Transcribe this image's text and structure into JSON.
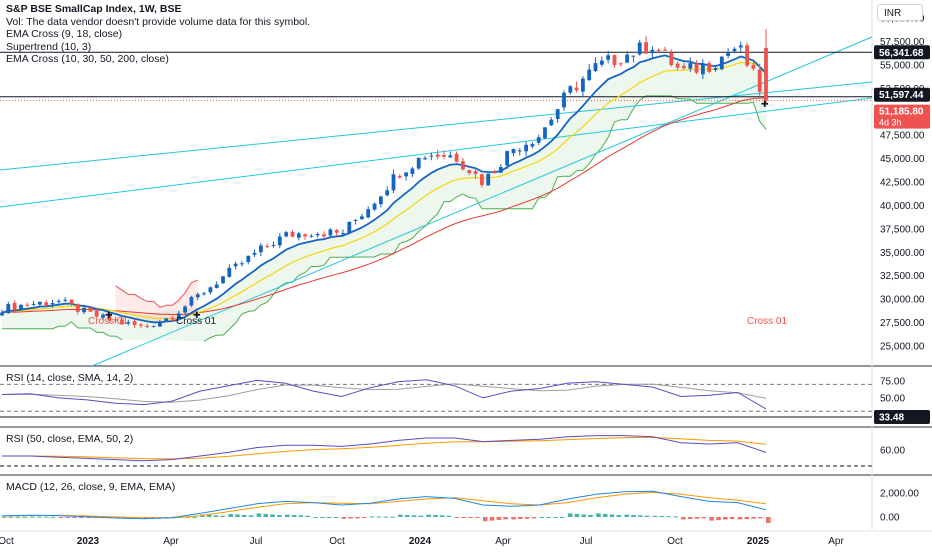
{
  "header": {
    "title": "S&P BSE SmallCap Index, 1W, BSE",
    "vol_note": "Vol: The data vendor doesn't provide volume data for this symbol.",
    "indicators": [
      "EMA Cross (9, 18, close)",
      "Supertrend (10, 3)",
      "EMA Cross (10, 30, 50, 200, close)"
    ],
    "currency": "INR"
  },
  "price_labels": {
    "resistance": "56,341.68",
    "support": "51,597.44",
    "current": "51,185.80",
    "countdown": "4d 3h"
  },
  "annotations": {
    "cross_left": "Cross 01",
    "cross_mid": "Cross 01",
    "cross_right": "Cross 01"
  },
  "colors": {
    "up": "#1565c0",
    "down": "#ef5350",
    "ema_fast": "#1565c0",
    "ema_slow": "#f5d70a",
    "ema_long": "#e53935",
    "supertrend_up": "#4caf50",
    "supertrend_down": "#ef5350",
    "trendline": "#26c6da",
    "rsi": "#5b4cc4",
    "rsi_ma": "#9e9e9e",
    "macd": "#1e88e5",
    "signal": "#ff9800",
    "hist_pos": "#26a69a",
    "hist_neg": "#ef5350"
  },
  "chart_data": [
    {
      "type": "candlestick",
      "title": "S&P BSE SmallCap Index, 1W, BSE",
      "x": [
        "Oct",
        "2023",
        "Apr",
        "Jul",
        "Oct",
        "2024",
        "Apr",
        "Jul",
        "Oct",
        "2025",
        "Apr"
      ],
      "y_ticks": [
        "60,000.00",
        "57,500.00",
        "55,000.00",
        "52,500.00",
        "50,000.00",
        "47,500.00",
        "45,000.00",
        "42,500.00",
        "40,000.00",
        "37,500.00",
        "35,000.00",
        "32,500.00",
        "30,000.00",
        "27,500.00",
        "25,000.00"
      ],
      "ylim": [
        24000,
        61000
      ],
      "series": [
        {
          "name": "S&P BSE SmallCap Index",
          "values": [
            {
              "t": "2022-10",
              "c": 29000
            },
            {
              "t": "2022-11",
              "c": 29500
            },
            {
              "t": "2022-12",
              "c": 29800
            },
            {
              "t": "2023-01",
              "c": 28500
            },
            {
              "t": "2023-02",
              "c": 27600
            },
            {
              "t": "2023-03",
              "c": 27000
            },
            {
              "t": "2023-04",
              "c": 28200
            },
            {
              "t": "2023-05",
              "c": 30500
            },
            {
              "t": "2023-06",
              "c": 32800
            },
            {
              "t": "2023-07",
              "c": 35000
            },
            {
              "t": "2023-08",
              "c": 36800
            },
            {
              "t": "2023-09",
              "c": 37200
            },
            {
              "t": "2023-10",
              "c": 37000
            },
            {
              "t": "2023-11",
              "c": 40000
            },
            {
              "t": "2023-12",
              "c": 43500
            },
            {
              "t": "2024-01",
              "c": 45500
            },
            {
              "t": "2024-02",
              "c": 45300
            },
            {
              "t": "2024-03",
              "c": 42500
            },
            {
              "t": "2024-04",
              "c": 46000
            },
            {
              "t": "2024-05",
              "c": 47500
            },
            {
              "t": "2024-06",
              "c": 52000
            },
            {
              "t": "2024-07",
              "c": 54800
            },
            {
              "t": "2024-08",
              "c": 56000
            },
            {
              "t": "2024-09",
              "c": 57200
            },
            {
              "t": "2024-10",
              "c": 54200
            },
            {
              "t": "2024-11",
              "c": 55000
            },
            {
              "t": "2024-12",
              "c": 57000
            },
            {
              "t": "2025-01",
              "c": 51186
            }
          ]
        }
      ],
      "horizontal_levels": [
        56341.68,
        51597.44
      ]
    },
    {
      "type": "line",
      "title": "RSI (14, close, SMA, 14, 2)",
      "y_ticks": [
        "75.00",
        "50.00"
      ],
      "value_label": "33.48",
      "series": [
        {
          "name": "RSI",
          "values": [
            55,
            56,
            50,
            47,
            42,
            40,
            45,
            60,
            68,
            76,
            72,
            60,
            52,
            65,
            74,
            77,
            68,
            50,
            60,
            64,
            72,
            74,
            70,
            66,
            52,
            54,
            58,
            33.48
          ]
        }
      ]
    },
    {
      "type": "line",
      "title": "RSI (50, close, EMA, 50, 2)",
      "y_ticks": [
        "60.00"
      ],
      "series": [
        {
          "name": "RSI",
          "values": [
            55,
            55,
            54,
            53,
            52,
            51,
            52,
            55,
            58,
            62,
            64,
            64,
            63,
            65,
            68,
            70,
            70,
            67,
            68,
            69,
            71,
            72,
            72,
            71,
            66,
            65,
            66,
            58
          ]
        }
      ]
    },
    {
      "type": "bar",
      "title": "MACD (12, 26, close, 9, EMA, EMA)",
      "y_ticks": [
        "2,000.00",
        "0.00"
      ],
      "series": [
        {
          "name": "MACD",
          "values": [
            100,
            150,
            120,
            20,
            -80,
            -150,
            -60,
            300,
            700,
            1100,
            1300,
            1200,
            1000,
            1150,
            1500,
            1700,
            1550,
            1000,
            900,
            1000,
            1500,
            1900,
            2100,
            2150,
            1700,
            1300,
            1200,
            600
          ]
        },
        {
          "name": "Signal",
          "values": [
            80,
            120,
            130,
            80,
            10,
            -60,
            -80,
            100,
            450,
            800,
            1100,
            1200,
            1150,
            1100,
            1300,
            1500,
            1600,
            1350,
            1100,
            1000,
            1200,
            1600,
            1900,
            2050,
            1900,
            1600,
            1400,
            1100
          ]
        }
      ]
    }
  ]
}
